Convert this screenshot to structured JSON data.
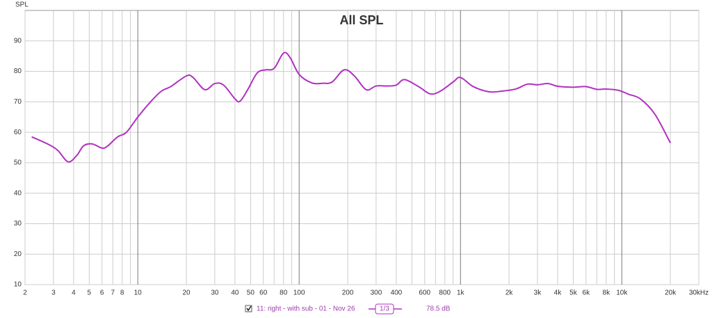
{
  "chart_data": {
    "type": "line",
    "title": "All SPL",
    "y_label": "SPL",
    "xscale": "log",
    "grid": true,
    "x": [
      2.2,
      2.8,
      3.2,
      3.7,
      4.2,
      4.6,
      5.2,
      6,
      6.5,
      7.5,
      8.5,
      10,
      12,
      14,
      16,
      20,
      22,
      26,
      30,
      34,
      40,
      43,
      48,
      55,
      62,
      70,
      80,
      88,
      100,
      120,
      140,
      160,
      190,
      220,
      260,
      300,
      350,
      400,
      450,
      550,
      650,
      750,
      900,
      1000,
      1200,
      1500,
      1800,
      2200,
      2600,
      3000,
      3500,
      4000,
      5000,
      6000,
      7000,
      8000,
      9500,
      11000,
      13000,
      16000,
      20000
    ],
    "series": [
      {
        "name": "11: right - with sub - 01 - Nov 26",
        "color": "#b030c0",
        "values": [
          58.5,
          56,
          54,
          50.3,
          52.5,
          55.5,
          56.2,
          54.8,
          55.5,
          58.5,
          60,
          65,
          70,
          73.5,
          75,
          78.5,
          78,
          74,
          76,
          75.5,
          71,
          70.2,
          74,
          79.5,
          80.5,
          81,
          86,
          84.5,
          79,
          76.2,
          76.1,
          76.5,
          80.5,
          78.5,
          74,
          75.2,
          75.2,
          75.5,
          77.3,
          75,
          72.6,
          73.5,
          76.5,
          78,
          75,
          73.3,
          73.5,
          74.2,
          75.8,
          75.6,
          76,
          75.1,
          74.8,
          75,
          74.1,
          74.2,
          73.8,
          72.5,
          71,
          66,
          56.5
        ]
      }
    ],
    "xlim": [
      2,
      30000
    ],
    "ylim": [
      10,
      100
    ],
    "xticks": [
      2,
      3,
      4,
      5,
      6,
      7,
      8,
      10,
      20,
      30,
      40,
      50,
      60,
      80,
      100,
      200,
      300,
      400,
      600,
      800,
      {
        "value": 1000,
        "label": "1k"
      },
      {
        "value": 2000,
        "label": "2k"
      },
      {
        "value": 3000,
        "label": "3k"
      },
      {
        "value": 4000,
        "label": "4k"
      },
      {
        "value": 5000,
        "label": "5k"
      },
      {
        "value": 6000,
        "label": "6k"
      },
      {
        "value": 8000,
        "label": "8k"
      },
      {
        "value": 10000,
        "label": "10k"
      },
      {
        "value": 20000,
        "label": "20k"
      },
      {
        "value": 30000,
        "label": "30kHz"
      }
    ],
    "xminorticks": [
      9,
      70,
      90,
      500,
      700,
      900,
      7000,
      9000
    ],
    "yticks": [
      10,
      20,
      30,
      40,
      50,
      60,
      70,
      80,
      90
    ],
    "legend": {
      "smoothing": "1/3",
      "level": "78.5 dB"
    }
  }
}
